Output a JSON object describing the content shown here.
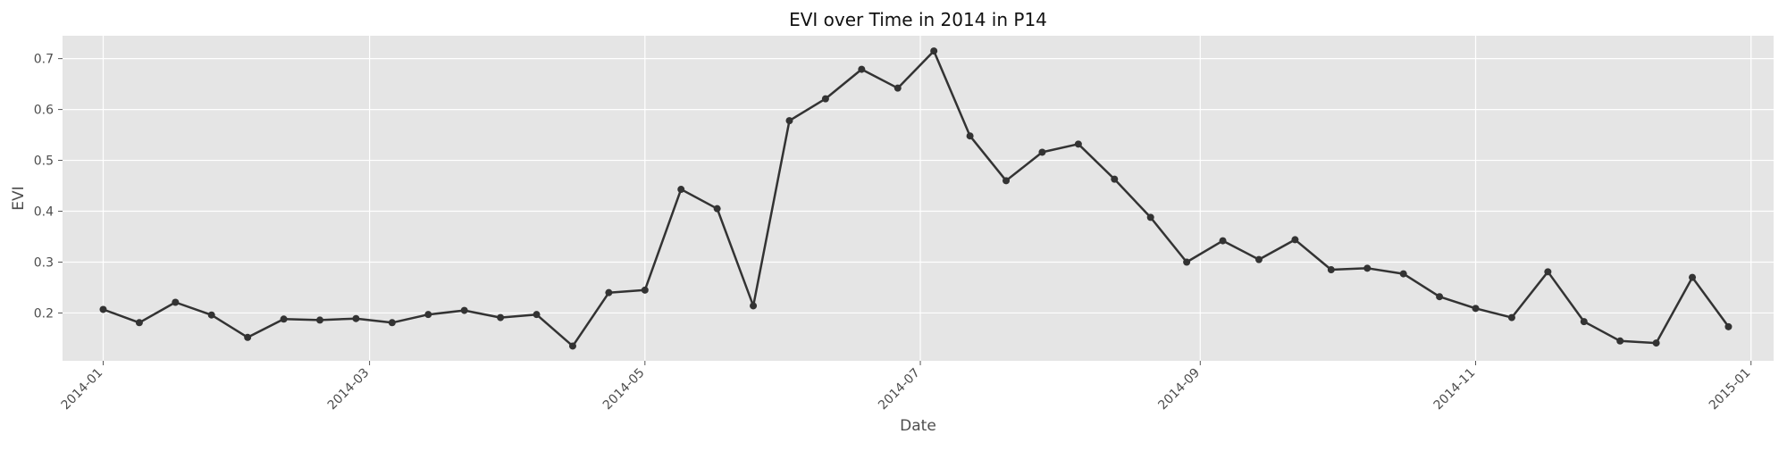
{
  "chart_data": {
    "type": "line",
    "title": "EVI over Time in 2014 in P14",
    "xlabel": "Date",
    "ylabel": "EVI",
    "x_tick_labels": [
      "2014-01",
      "2014-03",
      "2014-05",
      "2014-07",
      "2014-09",
      "2014-11",
      "2015-01"
    ],
    "x_tick_dates": [
      "2014-01-01",
      "2014-03-01",
      "2014-05-01",
      "2014-07-01",
      "2014-09-01",
      "2014-11-01",
      "2015-01-01"
    ],
    "y_ticks": [
      0.2,
      0.3,
      0.4,
      0.5,
      0.6,
      0.7
    ],
    "y_tick_labels": [
      "0.2",
      "0.3",
      "0.4",
      "0.5",
      "0.6",
      "0.7"
    ],
    "xlim": [
      "2013-12-23",
      "2015-01-06"
    ],
    "ylim": [
      0.106,
      0.745
    ],
    "grid": true,
    "colors": {
      "background": "#E5E5E5",
      "grid": "#FFFFFF",
      "line": "#333333"
    },
    "series": [
      {
        "x": [
          "2014-01-01",
          "2014-01-09",
          "2014-01-17",
          "2014-01-25",
          "2014-02-02",
          "2014-02-10",
          "2014-02-18",
          "2014-02-26",
          "2014-03-06",
          "2014-03-14",
          "2014-03-22",
          "2014-03-30",
          "2014-04-07",
          "2014-04-15",
          "2014-04-23",
          "2014-05-01",
          "2014-05-09",
          "2014-05-17",
          "2014-05-25",
          "2014-06-02",
          "2014-06-10",
          "2014-06-18",
          "2014-06-26",
          "2014-07-04",
          "2014-07-12",
          "2014-07-20",
          "2014-07-28",
          "2014-08-05",
          "2014-08-13",
          "2014-08-21",
          "2014-08-29",
          "2014-09-06",
          "2014-09-14",
          "2014-09-22",
          "2014-09-30",
          "2014-10-08",
          "2014-10-16",
          "2014-10-24",
          "2014-11-01",
          "2014-11-09",
          "2014-11-17",
          "2014-11-25",
          "2014-12-03",
          "2014-12-11",
          "2014-12-19",
          "2014-12-27"
        ],
        "y": [
          0.207,
          0.181,
          0.221,
          0.196,
          0.152,
          0.188,
          0.186,
          0.189,
          0.181,
          0.197,
          0.205,
          0.191,
          0.197,
          0.135,
          0.24,
          0.245,
          0.443,
          0.405,
          0.214,
          0.578,
          0.621,
          0.679,
          0.642,
          0.715,
          0.548,
          0.46,
          0.516,
          0.532,
          0.463,
          0.388,
          0.3,
          0.342,
          0.305,
          0.344,
          0.285,
          0.288,
          0.277,
          0.232,
          0.209,
          0.191,
          0.281,
          0.183,
          0.145,
          0.141,
          0.27,
          0.173
        ]
      }
    ]
  }
}
